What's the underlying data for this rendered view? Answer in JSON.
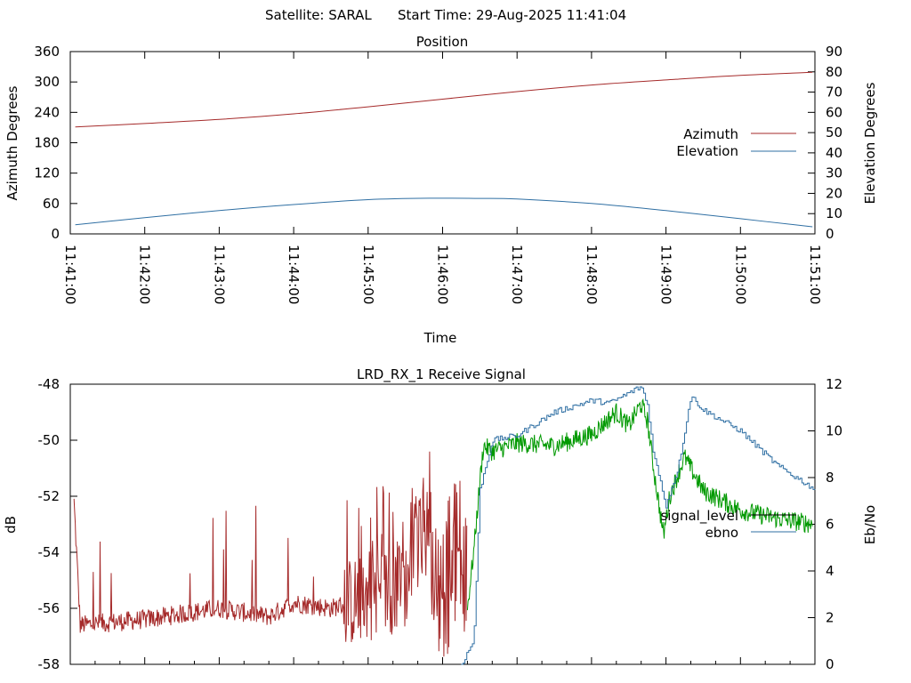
{
  "header": {
    "satellite_label": "Satellite: SARAL",
    "start_time_label": "Start Time: 29-Aug-2025 11:41:04"
  },
  "colors": {
    "azimuth": "#a52a2a",
    "elevation": "#2f6fa3",
    "signal_level": "#009900",
    "signal_level_legend": "#000000",
    "ebno": "#2f6fa3",
    "signal_red_segment": "#a52a2a"
  },
  "chart_data": [
    {
      "type": "line",
      "title": "Position",
      "xlabel": "Time",
      "ylabel": "Azimuth Degrees",
      "y2label": "Elevation Degrees",
      "xlim": [
        "11:41:00",
        "11:51:00"
      ],
      "xticks": [
        "11:41:00",
        "11:42:00",
        "11:43:00",
        "11:44:00",
        "11:45:00",
        "11:46:00",
        "11:47:00",
        "11:48:00",
        "11:49:00",
        "11:50:00",
        "11:51:00"
      ],
      "ylim": [
        0,
        360
      ],
      "yticks": [
        "0",
        "60",
        "120",
        "180",
        "240",
        "300",
        "360"
      ],
      "y2lim": [
        0,
        90
      ],
      "y2ticks": [
        "0",
        "10",
        "20",
        "30",
        "40",
        "50",
        "60",
        "70",
        "80",
        "90"
      ],
      "legend_position": "right",
      "series": [
        {
          "name": "Azimuth",
          "axis": "y",
          "x": [
            "11:41:04",
            "11:42:00",
            "11:43:00",
            "11:44:00",
            "11:45:00",
            "11:46:00",
            "11:47:00",
            "11:48:00",
            "11:49:00",
            "11:50:00",
            "11:50:58"
          ],
          "values": [
            211,
            218,
            226,
            237,
            251,
            266,
            281,
            294,
            304,
            313,
            319
          ]
        },
        {
          "name": "Elevation",
          "axis": "y2",
          "x": [
            "11:41:04",
            "11:42:00",
            "11:43:00",
            "11:44:00",
            "11:45:00",
            "11:45:50",
            "11:46:30",
            "11:47:00",
            "11:48:00",
            "11:49:00",
            "11:50:00",
            "11:50:58"
          ],
          "values": [
            4.5,
            8,
            11.5,
            14.5,
            16.9,
            17.6,
            17.5,
            17.2,
            15,
            11.5,
            7.5,
            3.5
          ]
        }
      ]
    },
    {
      "type": "line",
      "title": "LRD_RX_1 Receive Signal",
      "ylabel": "dB",
      "y2label": "Eb/No",
      "xlim": [
        "11:41:00",
        "11:51:00"
      ],
      "ylim": [
        -58,
        -48
      ],
      "yticks": [
        "-58",
        "-56",
        "-54",
        "-52",
        "-50",
        "-48"
      ],
      "y2lim": [
        0,
        12
      ],
      "y2ticks": [
        "0",
        "2",
        "4",
        "6",
        "8",
        "10",
        "12"
      ],
      "legend_position": "right",
      "series": [
        {
          "name": "signal_level",
          "axis": "y",
          "x": [
            "11:41:00",
            "11:41:03",
            "11:41:08",
            "11:42:00",
            "11:43:00",
            "11:43:40",
            "11:44:00",
            "11:44:30",
            "11:45:00",
            "11:45:30",
            "11:45:45",
            "11:46:00",
            "11:46:10",
            "11:46:20",
            "11:46:25",
            "11:46:30",
            "11:46:33",
            "11:46:40",
            "11:47:00",
            "11:47:30",
            "11:48:00",
            "11:48:20",
            "11:48:30",
            "11:48:40",
            "11:48:45",
            "11:48:50",
            "11:48:58",
            "11:49:03",
            "11:49:15",
            "11:49:20",
            "11:49:30",
            "11:50:00",
            "11:50:30",
            "11:51:00"
          ],
          "values": [
            -56.5,
            -52.2,
            -56.6,
            -56.4,
            -56.0,
            -56.3,
            -55.8,
            -56.0,
            -55.6,
            -55.2,
            -53.0,
            -56.8,
            -55.0,
            -56.0,
            -54.0,
            -51.5,
            -50.2,
            -50.4,
            -50.1,
            -50.2,
            -49.8,
            -49.0,
            -49.5,
            -48.7,
            -49.3,
            -51.0,
            -53.4,
            -52.0,
            -50.6,
            -51.0,
            -51.8,
            -52.5,
            -52.8,
            -53.0
          ]
        },
        {
          "name": "ebno",
          "axis": "y2",
          "x": [
            "11:46:15",
            "11:46:25",
            "11:46:30",
            "11:46:40",
            "11:47:00",
            "11:47:30",
            "11:48:00",
            "11:48:15",
            "11:48:40",
            "11:48:45",
            "11:48:50",
            "11:49:00",
            "11:49:10",
            "11:49:20",
            "11:49:30",
            "11:50:00",
            "11:50:30",
            "11:51:00"
          ],
          "values": [
            0.0,
            1.0,
            7.5,
            9.6,
            9.8,
            10.8,
            11.3,
            11.2,
            11.9,
            11.1,
            9.0,
            6.8,
            8.5,
            11.5,
            10.9,
            10.0,
            8.5,
            7.5
          ]
        }
      ]
    }
  ]
}
